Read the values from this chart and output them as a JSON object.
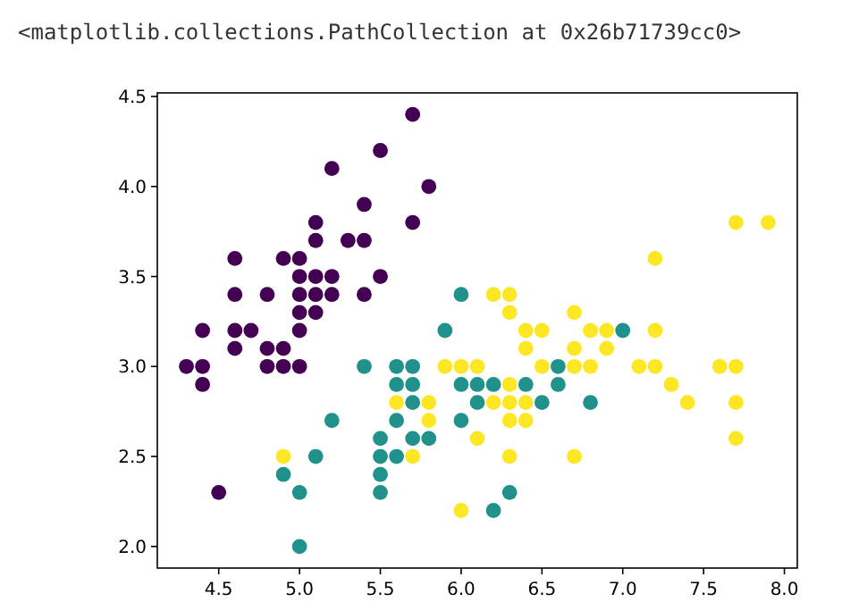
{
  "chart_data": {
    "type": "scatter",
    "annotations": [
      "<matplotlib.collections.PathCollection at 0x26b71739cc0>"
    ],
    "marker": "circle",
    "grid": false,
    "xlim": [
      4.12,
      8.08
    ],
    "ylim": [
      1.88,
      4.52
    ],
    "xticks": [
      4.5,
      {
        "value": 5,
        "label": "5.0"
      },
      5.5,
      {
        "value": 6,
        "label": "6.0"
      },
      6.5,
      {
        "value": 7,
        "label": "7.0"
      },
      7.5,
      {
        "value": 8,
        "label": "8.0"
      }
    ],
    "yticks": [
      {
        "value": 2,
        "label": "2.0"
      },
      2.5,
      {
        "value": 3,
        "label": "3.0"
      },
      3.5,
      {
        "value": 4,
        "label": "4.0"
      },
      4.5
    ],
    "series": [
      {
        "color": "#440154",
        "x": [
          5.1,
          4.9,
          4.7,
          4.6,
          5.0,
          5.4,
          4.6,
          5.0,
          4.4,
          4.9,
          5.4,
          4.8,
          4.8,
          4.3,
          5.8,
          5.7,
          5.7,
          5.1,
          5.4,
          5.1,
          4.6,
          5.1,
          5.0,
          5.2,
          5.2,
          4.8,
          5.2,
          5.5,
          5.0,
          5.5,
          4.9,
          4.4,
          5.1,
          5.0,
          4.5,
          4.4,
          4.6,
          5.3,
          5.0
        ],
        "values": [
          3.5,
          3.0,
          3.2,
          3.1,
          3.6,
          3.9,
          3.4,
          3.4,
          2.9,
          3.1,
          3.7,
          3.4,
          3.0,
          3.0,
          4.0,
          4.4,
          3.8,
          3.8,
          3.4,
          3.7,
          3.6,
          3.3,
          3.0,
          3.5,
          3.4,
          3.1,
          4.1,
          4.2,
          3.2,
          3.5,
          3.6,
          3.0,
          3.4,
          3.5,
          2.3,
          3.2,
          3.2,
          3.7,
          3.3
        ]
      },
      {
        "color": "#21918c",
        "x": [
          7.0,
          5.5,
          6.5,
          5.7,
          4.9,
          6.6,
          5.2,
          5.0,
          6.1,
          5.6,
          5.6,
          6.2,
          5.6,
          5.9,
          6.1,
          6.4,
          6.6,
          6.8,
          6.0,
          5.7,
          5.5,
          6.0,
          5.4,
          6.0,
          6.3,
          5.5,
          5.5,
          5.8,
          5.0,
          5.6,
          5.7,
          5.7,
          6.2,
          5.1
        ],
        "values": [
          3.2,
          2.3,
          2.8,
          2.8,
          2.4,
          2.9,
          2.7,
          2.0,
          2.9,
          2.9,
          3.0,
          2.2,
          2.5,
          3.2,
          2.8,
          2.9,
          3.0,
          2.8,
          2.9,
          2.6,
          2.4,
          2.7,
          3.0,
          3.4,
          2.3,
          2.5,
          2.6,
          2.6,
          2.3,
          2.7,
          3.0,
          2.9,
          2.9,
          2.5
        ]
      },
      {
        "color": "#fde725",
        "x": [
          6.3,
          5.8,
          7.1,
          6.3,
          6.5,
          7.6,
          4.9,
          7.3,
          6.7,
          7.2,
          6.5,
          6.4,
          6.8,
          5.7,
          5.8,
          6.4,
          7.7,
          7.7,
          6.0,
          6.9,
          5.6,
          7.7,
          6.3,
          6.7,
          7.2,
          6.2,
          6.1,
          6.4,
          7.2,
          7.4,
          7.9,
          6.3,
          6.1,
          7.7,
          6.3,
          6.4,
          6.0,
          6.9,
          6.7,
          6.8,
          6.7,
          6.3,
          6.2,
          5.9
        ],
        "values": [
          3.3,
          2.7,
          3.0,
          2.9,
          3.0,
          3.0,
          2.5,
          2.9,
          2.5,
          3.6,
          3.2,
          2.7,
          3.0,
          2.5,
          2.8,
          3.2,
          3.8,
          2.6,
          2.2,
          3.2,
          2.8,
          2.8,
          2.7,
          3.3,
          3.2,
          2.8,
          3.0,
          2.8,
          3.0,
          2.8,
          3.8,
          2.8,
          2.6,
          3.0,
          3.4,
          3.1,
          3.0,
          3.1,
          3.1,
          3.2,
          3.0,
          2.5,
          3.4,
          3.0
        ]
      }
    ]
  }
}
